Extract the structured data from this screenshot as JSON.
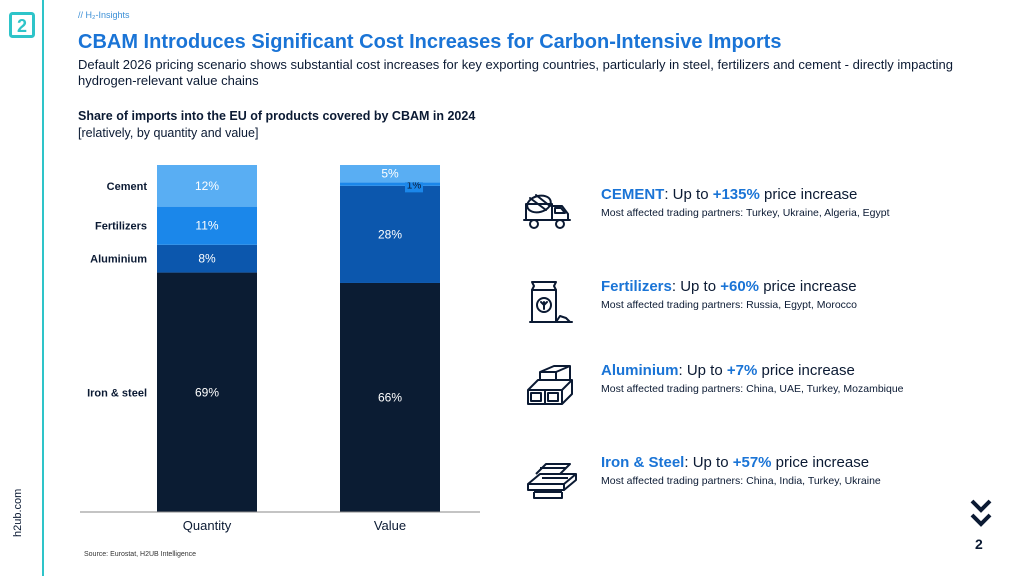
{
  "header": {
    "kicker": "// H₂-Insights",
    "title": "CBAM Introduces Significant Cost Increases for Carbon-Intensive Imports",
    "subtitle": "Default 2026 pricing scenario shows substantial cost increases for key exporting countries, particularly in steel, fertilizers and cement - directly impacting hydrogen-relevant value chains"
  },
  "chart_data": {
    "type": "bar",
    "stacked": true,
    "title": "Share of imports into the EU of products covered by CBAM in 2024",
    "subtitle": "[relatively, by quantity and value]",
    "categories": [
      "Quantity",
      "Value"
    ],
    "series": [
      {
        "name": "Iron & steel",
        "values": [
          69,
          66
        ],
        "labels": [
          "69%",
          "66%"
        ],
        "color": "#0b1c33"
      },
      {
        "name": "Aluminium",
        "values": [
          8,
          28
        ],
        "labels": [
          "8%",
          "28%"
        ],
        "color": "#0c57ad"
      },
      {
        "name": "Fertilizers",
        "values": [
          11,
          1
        ],
        "labels": [
          "11%",
          "1%"
        ],
        "color": "#1b87ea"
      },
      {
        "name": "Cement",
        "values": [
          12,
          5
        ],
        "labels": [
          "12%",
          "5%"
        ],
        "color": "#59aef3"
      }
    ],
    "ylim": [
      0,
      100
    ],
    "grid": false,
    "legend": "left"
  },
  "info_items": [
    {
      "icon": "cement-mixer-truck-icon",
      "name": "CEMENT",
      "pre": ": Up to ",
      "pct": "+135%",
      "post": " price increase",
      "partners": "Most affected trading partners: Turkey, Ukraine, Algeria, Egypt"
    },
    {
      "icon": "fertilizer-bag-icon",
      "name": "Fertilizers",
      "pre": ": Up to ",
      "pct": "+60%",
      "post": " price increase",
      "partners": "Most affected trading partners: Russia, Egypt, Morocco"
    },
    {
      "icon": "aluminium-beams-icon",
      "name": "Aluminium",
      "pre": ": Up to ",
      "pct": "+7%",
      "post": " price increase",
      "partners": "Most affected trading partners: China, UAE, Turkey, Mozambique"
    },
    {
      "icon": "steel-rails-icon",
      "name": "Iron & Steel",
      "pre": ": Up to ",
      "pct": "+57%",
      "post": " price increase",
      "partners": "Most affected trading partners: China, India, Turkey, Ukraine"
    }
  ],
  "footer": {
    "source": "Source: Eurostat, H2UB Intelligence",
    "url": "h2ub.com",
    "page": "2"
  },
  "logo_text": "2"
}
